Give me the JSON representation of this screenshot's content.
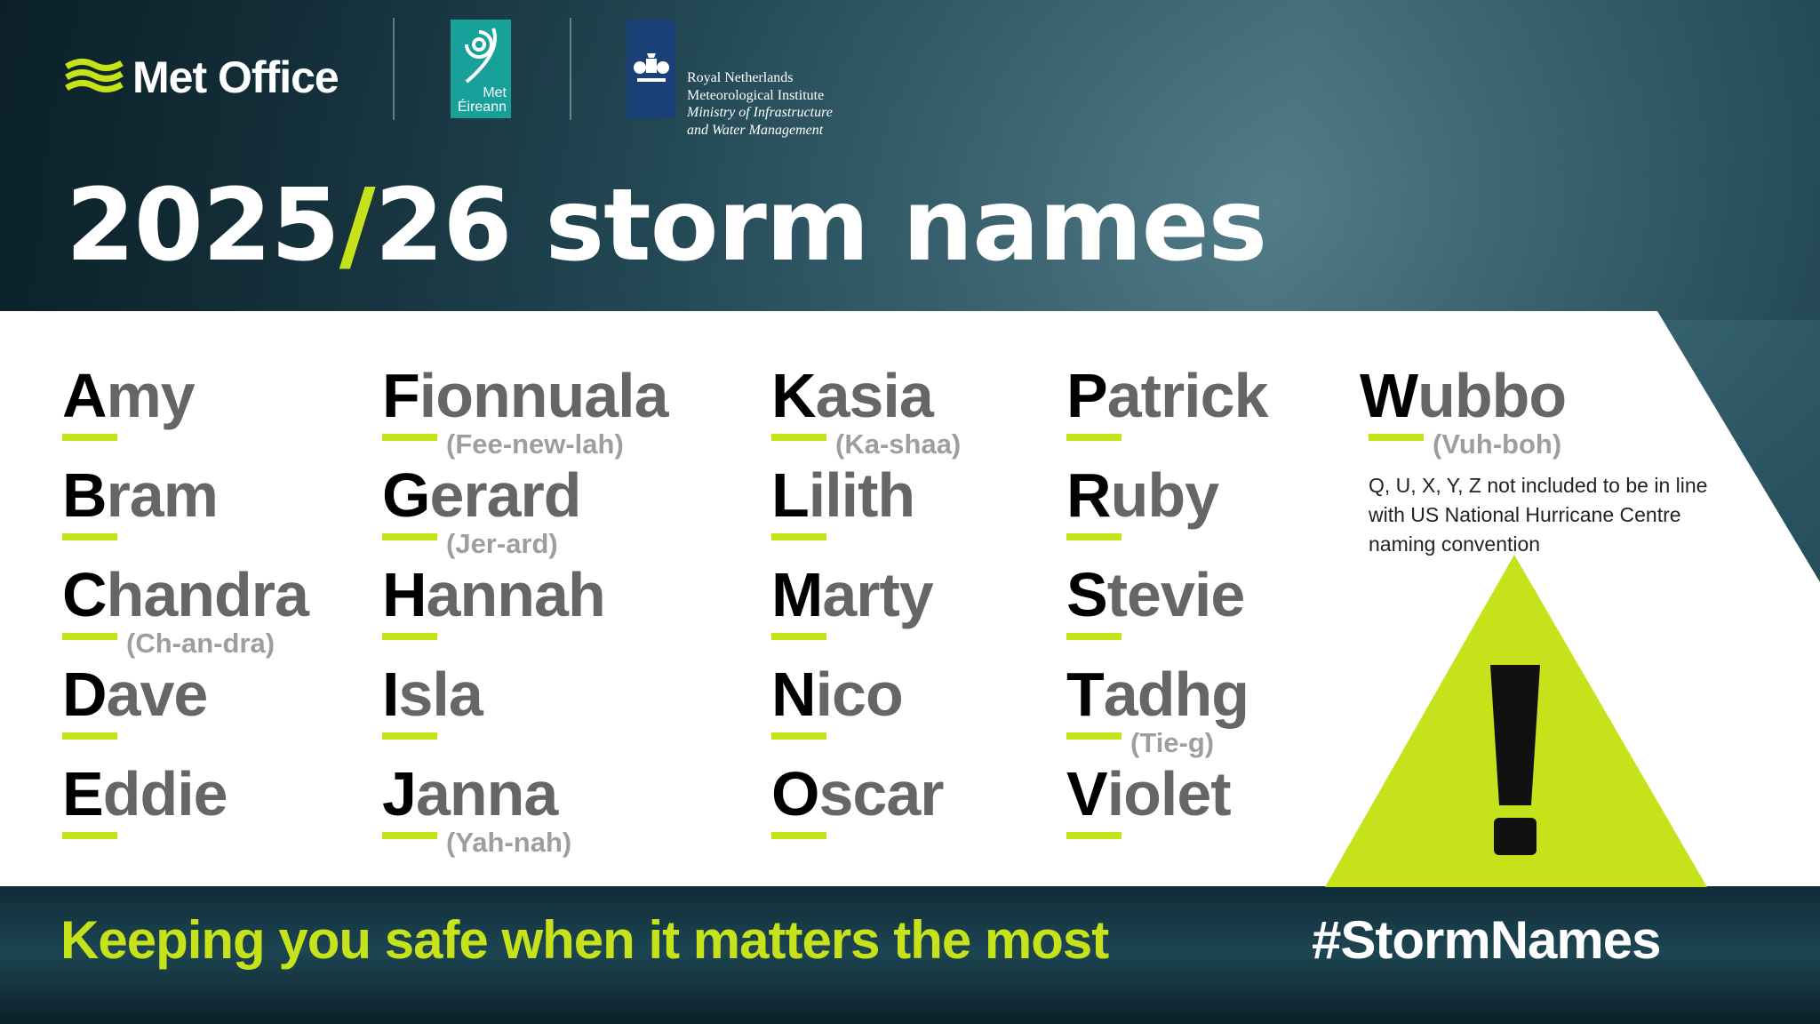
{
  "logos": {
    "met_office": "Met Office",
    "met_eireann": [
      "Met",
      "Éireann"
    ],
    "knmi": {
      "line1": "Royal Netherlands",
      "line2": "Meteorological Institute",
      "line3": "Ministry of Infrastructure",
      "line4": "and Water Management"
    }
  },
  "title": {
    "part1": "2025",
    "slash": "/",
    "part2": "26 storm names"
  },
  "names": [
    {
      "initial": "A",
      "rest": "my",
      "pron": ""
    },
    {
      "initial": "B",
      "rest": "ram",
      "pron": ""
    },
    {
      "initial": "C",
      "rest": "handra",
      "pron": "(Ch-an-dra)"
    },
    {
      "initial": "D",
      "rest": "ave",
      "pron": ""
    },
    {
      "initial": "E",
      "rest": "ddie",
      "pron": ""
    },
    {
      "initial": "F",
      "rest": "ionnuala",
      "pron": "(Fee-new-lah)"
    },
    {
      "initial": "G",
      "rest": "erard",
      "pron": "(Jer-ard)"
    },
    {
      "initial": "H",
      "rest": "annah",
      "pron": ""
    },
    {
      "initial": "I",
      "rest": "sla",
      "pron": ""
    },
    {
      "initial": "J",
      "rest": "anna",
      "pron": "(Yah-nah)"
    },
    {
      "initial": "K",
      "rest": "asia",
      "pron": "(Ka-shaa)"
    },
    {
      "initial": "L",
      "rest": "ilith",
      "pron": ""
    },
    {
      "initial": "M",
      "rest": "arty",
      "pron": ""
    },
    {
      "initial": "N",
      "rest": "ico",
      "pron": ""
    },
    {
      "initial": "O",
      "rest": "scar",
      "pron": ""
    },
    {
      "initial": "P",
      "rest": "atrick",
      "pron": ""
    },
    {
      "initial": "R",
      "rest": "uby",
      "pron": ""
    },
    {
      "initial": "S",
      "rest": "tevie",
      "pron": ""
    },
    {
      "initial": "T",
      "rest": "adhg",
      "pron": "(Tie-g)"
    },
    {
      "initial": "V",
      "rest": "iolet",
      "pron": ""
    },
    {
      "initial": "W",
      "rest": "ubbo",
      "pron": "(Vuh-boh)"
    }
  ],
  "note": "Q, U, X, Y, Z not included to be in line with US National Hurricane Centre naming convention",
  "warning_icon": "warning-triangle-icon",
  "footer": {
    "tagline": "Keeping you safe when it matters the most",
    "hashtag": "#StormNames"
  },
  "colors": {
    "accent": "#c5e21b",
    "initial": "#000000",
    "name": "#666666",
    "pronunciation": "#9e9e9e"
  }
}
